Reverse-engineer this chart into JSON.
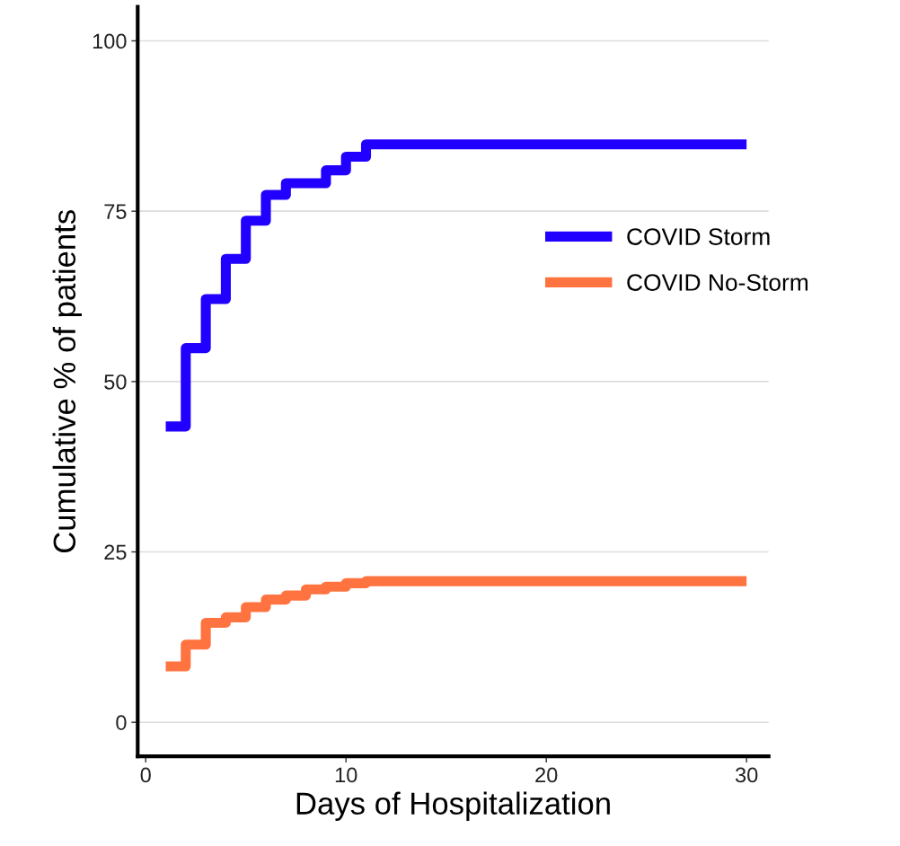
{
  "chart_data": {
    "type": "step",
    "xlabel": "Days of Hospitalization",
    "ylabel": "Cumulative % of patients",
    "series": [
      {
        "name": "COVID Storm",
        "color": "#2200ff",
        "x": [
          1,
          2,
          3,
          4,
          5,
          6,
          7,
          8,
          9,
          10,
          11,
          30
        ],
        "values": [
          43.4,
          54.9,
          62.1,
          68.0,
          73.6,
          77.4,
          79.1,
          79.1,
          81.0,
          83.0,
          84.8,
          84.8
        ]
      },
      {
        "name": "COVID No-Storm",
        "color": "#ff7340",
        "x": [
          1,
          2,
          3,
          4,
          5,
          6,
          7,
          8,
          9,
          10,
          11,
          30
        ],
        "values": [
          8.2,
          11.4,
          14.6,
          15.4,
          16.9,
          18.0,
          18.6,
          19.5,
          19.9,
          20.4,
          20.7,
          20.7
        ]
      }
    ],
    "xlim": [
      -0.4,
      31.1
    ],
    "xticks": [
      0,
      10,
      20,
      30
    ],
    "ylim": [
      -5,
      105
    ],
    "yticks": [
      0,
      25,
      50,
      75,
      100
    ],
    "grid": "y",
    "legend": "right",
    "line_style": "solid",
    "marker": "none"
  }
}
